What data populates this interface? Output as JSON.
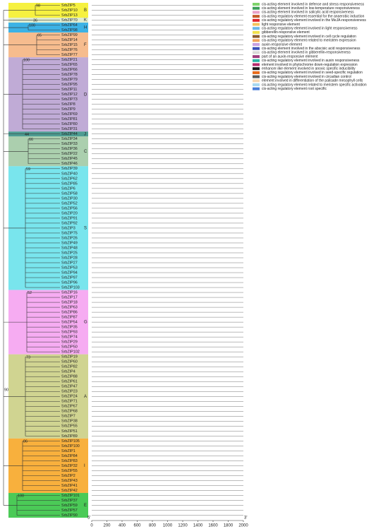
{
  "groups": [
    {
      "name": "B",
      "color": "#f5ee1e",
      "bootstrap": "98",
      "genes": [
        "SrbZIP5",
        "SrbZIP10",
        "SrbZIP13"
      ]
    },
    {
      "name": "K",
      "color": "#d9e8c8",
      "bootstrap": "36",
      "genes": [
        "SrbZIP70"
      ]
    },
    {
      "name": "H",
      "color": "#1aa4e0",
      "bootstrap": "100",
      "genes": [
        "SrbZIP64",
        "SrbZIP98"
      ]
    },
    {
      "name": "F",
      "color": "#f5b07a",
      "bootstrap": "65",
      "genes": [
        "SrbZIP99",
        "SrbZIP14",
        "SrbZIP15",
        "SrbZIP76",
        "SrbZIP77"
      ]
    },
    {
      "name": "D",
      "color": "#b59ccf",
      "bootstrap": "100",
      "genes": [
        "SrbZIP21",
        "SrbZIP65",
        "SrbZIP66",
        "SrbZIP78",
        "SrbZIP79",
        "SrbZIP95",
        "SrbZIP11",
        "SrbZIP12",
        "SrbZIP73",
        "SrbZIP8",
        "SrbZIP9",
        "SrbZIP69",
        "SrbZIP81",
        "SrbZIP80",
        "SrbZIP31"
      ]
    },
    {
      "name": "J",
      "color": "#2e8b7f",
      "bootstrap": "44",
      "genes": [
        "SrbZIP44"
      ]
    },
    {
      "name": "C",
      "color": "#9cc7a0",
      "bootstrap": "66",
      "genes": [
        "SrbZIP34",
        "SrbZIP33",
        "SrbZIP36",
        "SrbZIP22",
        "SrbZIP45",
        "SrbZIP46"
      ]
    },
    {
      "name": "S",
      "color": "#62e0ea",
      "bootstrap": "59",
      "genes": [
        "SrbZIP39",
        "SrbZIP40",
        "SrbZIP62",
        "SrbZIP85",
        "SrbZIP6",
        "SrbZIP58",
        "SrbZIP30",
        "SrbZIP52",
        "SrbZIP56",
        "SrbZIP20",
        "SrbZIP91",
        "SrbZIP92",
        "SrbZIP3",
        "SrbZIP75",
        "SrbZIP26",
        "SrbZIP49",
        "SrbZIP48",
        "SrbZIP25",
        "SrbZIP28",
        "SrbZIP27",
        "SrbZIP53",
        "SrbZIP94",
        "SrbZIP97",
        "SrbZIP96",
        "SrbZIP103"
      ]
    },
    {
      "name": "G",
      "color": "#f49ef0",
      "bootstrap": "52",
      "genes": [
        "SrbZIP16",
        "SrbZIP17",
        "SrbZIP18",
        "SrbZIP63",
        "SrbZIP86",
        "SrbZIP87",
        "SrbZIP54",
        "SrbZIP35",
        "SrbZIP93",
        "SrbZIP74",
        "SrbZIP29",
        "SrbZIP50",
        "SrbZIP102"
      ]
    },
    {
      "name": "A",
      "color": "#c8cc7e",
      "bootstrap": "73",
      "genes": [
        "SrbZIP19",
        "SrbZIP60",
        "SrbZIP82",
        "SrbZIP4",
        "SrbZIP88",
        "SrbZIP61",
        "SrbZIP47",
        "SrbZIP23",
        "SrbZIP24",
        "SrbZIP71",
        "SrbZIP67",
        "SrbZIP68",
        "SrbZIP7",
        "SrbZIP38",
        "SrbZIP55",
        "SrbZIP51",
        "SrbZIP89"
      ]
    },
    {
      "name": "I",
      "color": "#f7a21b",
      "bootstrap": "86",
      "genes": [
        "SrbZIP105",
        "SrbZIP100",
        "SrbZIP1",
        "SrbZIP84",
        "SrbZIP83",
        "SrbZIP32",
        "SrbZIP55",
        "SrbZIP2",
        "SrbZIP43",
        "SrbZIP41",
        "SrbZIP42"
      ]
    },
    {
      "name": "E",
      "color": "#2cc13a",
      "bootstrap": "100",
      "genes": [
        "SrbZIP101",
        "SrbZIP37",
        "SrbZIP59",
        "SrbZIP57",
        "SrbZIP90"
      ]
    }
  ],
  "root_bootstrap": "90",
  "legend": [
    {
      "color": "#7fd36b",
      "label": "cis-acting element involved in defense and stress responsiveness"
    },
    {
      "color": "#3a9e58",
      "label": "cis-acting element involved in low-temperature responsiveness"
    },
    {
      "color": "#e9a0c8",
      "label": "cis-acting element involved in salicylic acid responsiveness"
    },
    {
      "color": "#c45a2a",
      "label": "cis-acting regulatory element essential for the anaerobic induction"
    },
    {
      "color": "#e0262b",
      "label": "cis-acting regulatory element involved in the MeJA-responsiveness"
    },
    {
      "color": "#f4c35a",
      "label": "light responsive element"
    },
    {
      "color": "#6cb8e8",
      "label": "cis-acting regulatory element involved in light responsiveness"
    },
    {
      "color": "#f0e04a",
      "label": "gibberellin-responsive element"
    },
    {
      "color": "#8b5a2b",
      "label": "cis-acting regulatory element involved in cell cycle regulation"
    },
    {
      "color": "#f2a35c",
      "label": "cis-acting regulatory element related to meristem expression"
    },
    {
      "color": "#c8a0e0",
      "label": "auxin-responsive element"
    },
    {
      "color": "#3b4fb8",
      "label": "cis-acting element involved in the abscisic acid responsiveness"
    },
    {
      "color": "#d9d9d9",
      "label": "cis-acting element involved in gibberellin-responsiveness"
    },
    {
      "color": "#9e3d7e",
      "label": "part of an auxin-responsive element"
    },
    {
      "color": "#2bb7a6",
      "label": "cis-acting regulatory element involved in auxin responsiveness"
    },
    {
      "color": "#b52b6b",
      "label": "element involved in phytochrome down-regulation expression"
    },
    {
      "color": "#1a1a1a",
      "label": "enhancer-like element involved in anoxic specific inducibility"
    },
    {
      "color": "#e86a1a",
      "label": "cis-acting regulatory element involved in seed-specific regulation"
    },
    {
      "color": "#5a5a5a",
      "label": "cis-acting regulatory element involved in circadian control"
    },
    {
      "color": "#f7d6b0",
      "label": "element involved in differentiation of the palisade mesophyll cells"
    },
    {
      "color": "#a8d8f0",
      "label": "cis-acting regulatory element related to meristem specific activation"
    },
    {
      "color": "#4a7ed8",
      "label": "cis-acting regulatory element root specific"
    }
  ],
  "axis": {
    "xlim": [
      0,
      2000
    ],
    "xticks": [
      0,
      200,
      400,
      600,
      800,
      1000,
      1200,
      1400,
      1600,
      1800,
      2000
    ],
    "start": "5'",
    "end": "3'"
  }
}
